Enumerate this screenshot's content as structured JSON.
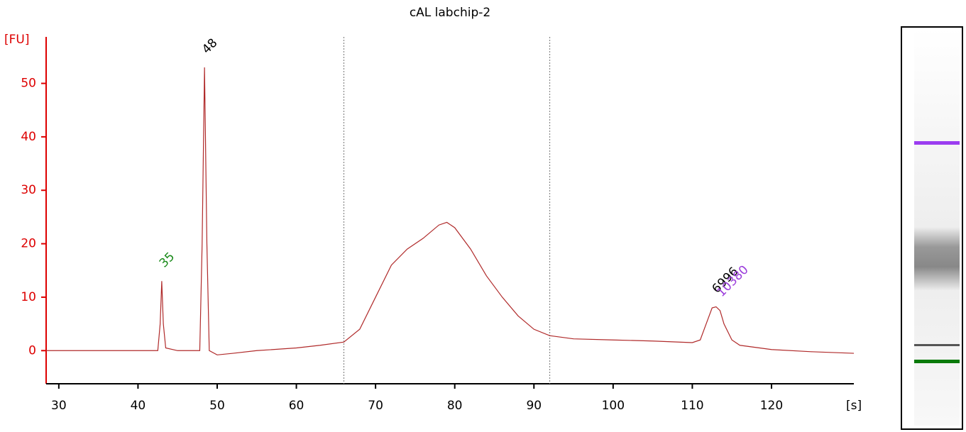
{
  "chart_data": {
    "type": "line",
    "title": "cAL labchip-2",
    "ylabel": "[FU]",
    "xlabel": "[s]",
    "xlim": [
      28.4,
      130.4
    ],
    "ylim": [
      -6.2,
      58.7
    ],
    "xticks": [
      30,
      40,
      50,
      60,
      70,
      80,
      90,
      100,
      110,
      120
    ],
    "yticks": [
      0,
      10,
      20,
      30,
      40,
      50
    ],
    "vlines": [
      66,
      92
    ],
    "series": [
      {
        "name": "cAL labchip-2",
        "color": "#b02a2a",
        "x": [
          28.4,
          35,
          40,
          42.5,
          42.8,
          43.0,
          43.2,
          43.5,
          45,
          47.8,
          48.1,
          48.4,
          48.7,
          49,
          50,
          52,
          55,
          60,
          63,
          66,
          68,
          70,
          72,
          74,
          76,
          78,
          79,
          80,
          82,
          84,
          86,
          88,
          90,
          92,
          95,
          100,
          105,
          110,
          111,
          112,
          112.5,
          113,
          113.5,
          114,
          115,
          116,
          120,
          125,
          130.4
        ],
        "values": [
          0,
          0,
          0,
          0,
          5,
          13,
          5,
          0.5,
          0,
          0,
          20,
          53,
          20,
          0,
          -0.8,
          -0.5,
          0,
          0.5,
          1,
          1.6,
          4,
          10,
          16,
          19,
          21,
          23.5,
          24,
          23,
          19,
          14,
          10,
          6.5,
          4,
          2.8,
          2.2,
          2,
          1.8,
          1.5,
          2,
          6,
          8,
          8.2,
          7.5,
          5,
          2,
          1,
          0.2,
          -0.2,
          -0.5
        ]
      }
    ],
    "annotations": [
      {
        "label": "35",
        "x": 43.0,
        "y": 13,
        "color": "#1a8a1a"
      },
      {
        "label": "48",
        "x": 48.4,
        "y": 53,
        "color": "#000000"
      },
      {
        "label": "6996",
        "x": 112.8,
        "y": 8.2,
        "color": "#000000"
      },
      {
        "label": "10380",
        "x": 113.4,
        "y": 7.5,
        "color": "#9b3ddb"
      }
    ]
  }
}
